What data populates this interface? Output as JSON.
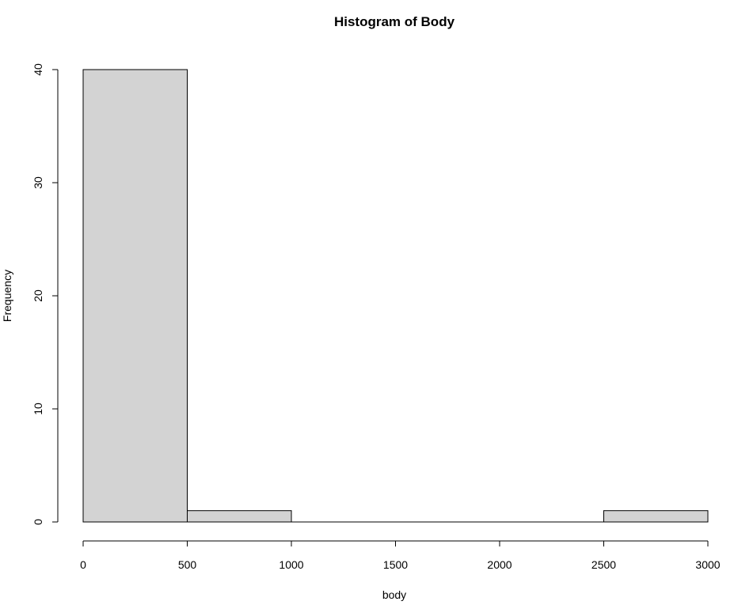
{
  "chart_data": {
    "type": "bar",
    "title": "Histogram of Body",
    "xlabel": "body",
    "ylabel": "Frequency",
    "bins": [
      {
        "from": 0,
        "to": 500,
        "count": 40
      },
      {
        "from": 500,
        "to": 1000,
        "count": 1
      },
      {
        "from": 1000,
        "to": 1500,
        "count": 0
      },
      {
        "from": 1500,
        "to": 2000,
        "count": 0
      },
      {
        "from": 2000,
        "to": 2500,
        "count": 0
      },
      {
        "from": 2500,
        "to": 3000,
        "count": 1
      }
    ],
    "xlim": [
      0,
      3000
    ],
    "ylim": [
      0,
      40
    ],
    "xticks": [
      0,
      500,
      1000,
      1500,
      2000,
      2500,
      3000
    ],
    "yticks": [
      0,
      10,
      20,
      30,
      40
    ],
    "bar_fill": "#d3d3d3",
    "bar_stroke": "#000000",
    "grid": false,
    "legend": "none"
  }
}
